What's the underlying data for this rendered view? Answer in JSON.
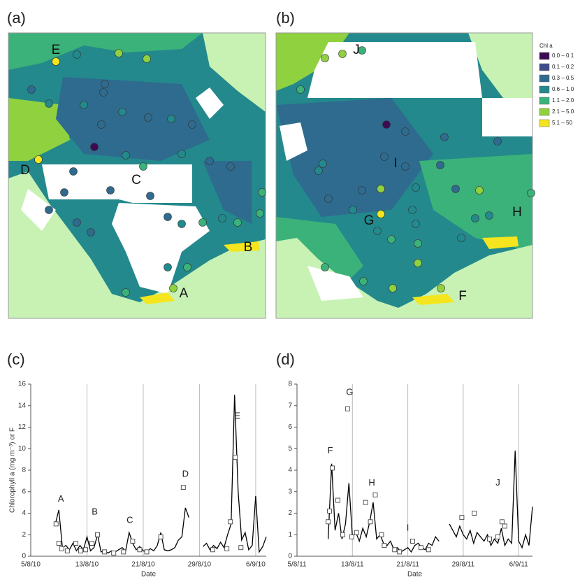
{
  "maps": {
    "panels": [
      {
        "label": "(a)",
        "points": [
          "E",
          "D",
          "C",
          "B",
          "A"
        ]
      },
      {
        "label": "(b)",
        "points": [
          "J",
          "I",
          "G",
          "H",
          "F"
        ]
      }
    ],
    "legend": {
      "title": "Chl a",
      "entries": [
        {
          "label": "0.0 – 0.1",
          "color": "#3d0a54"
        },
        {
          "label": "0.1 – 0.2",
          "color": "#3f4a8a"
        },
        {
          "label": "0.3 – 0.5",
          "color": "#2e6b8e"
        },
        {
          "label": "0.6 – 1.0",
          "color": "#23898c"
        },
        {
          "label": "1.1 – 2.0",
          "color": "#3bb27a"
        },
        {
          "label": "2.1 – 5.0",
          "color": "#8fd13f"
        },
        {
          "label": "5.1 – 50",
          "color": "#f5e51e"
        }
      ]
    }
  },
  "chart_data": [
    {
      "type": "line",
      "panel": "(c)",
      "y_label": "Chlorophyll a (mg m⁻³) or F",
      "x_label": "Date",
      "xlim": [
        0,
        33.5
      ],
      "ylim": [
        0,
        16
      ],
      "xticks": [
        {
          "value": 0,
          "label": "5/8/10"
        },
        {
          "value": 8,
          "label": "13/8/10"
        },
        {
          "value": 16,
          "label": "21/8/10"
        },
        {
          "value": 24,
          "label": "29/8/10"
        },
        {
          "value": 32,
          "label": "6/9/10"
        }
      ],
      "yticks": [
        0,
        2,
        4,
        6,
        8,
        10,
        12,
        14,
        16
      ],
      "grid": "x",
      "annotations": [
        "A",
        "B",
        "C",
        "D",
        "E"
      ],
      "series": [
        {
          "style": "line",
          "color": "#000000",
          "x": [
            3.5,
            4,
            4.5,
            5,
            5.5,
            6,
            6.5,
            7,
            7.5,
            8,
            8.5,
            9,
            9.5,
            10,
            10.5,
            11,
            11.5,
            12,
            12.5,
            13,
            13.5,
            14,
            14.5,
            15,
            15.5,
            16,
            16.5,
            17,
            17.5,
            18,
            18.5,
            19,
            19.5,
            20,
            20.5,
            21,
            21.5,
            22,
            22.5,
            23,
            23.5,
            24,
            24.5,
            25,
            25.5,
            26,
            26.5,
            27,
            27.5,
            28,
            28.5,
            29,
            29.5,
            30,
            30.5,
            31,
            31.5,
            32,
            32.5,
            33,
            33.5
          ],
          "values": [
            3.0,
            4.3,
            0.8,
            1.0,
            0.6,
            1.2,
            0.5,
            1.0,
            0.6,
            1.8,
            0.5,
            0.8,
            2.0,
            0.4,
            0.5,
            0.3,
            0.5,
            0.4,
            0.6,
            0.8,
            0.5,
            2.2,
            1.2,
            0.6,
            0.9,
            0.5,
            0.4,
            0.7,
            0.5,
            1.0,
            2.2,
            0.6,
            0.5,
            0.6,
            0.8,
            1.5,
            1.8,
            4.5,
            3.6,
            null,
            null,
            null,
            0.9,
            1.2,
            0.6,
            1.0,
            0.7,
            1.3,
            0.8,
            2.0,
            3.0,
            15.0,
            6.0,
            1.5,
            2.2,
            0.6,
            1.0,
            5.6,
            0.4,
            0.9,
            1.8
          ]
        },
        {
          "style": "square",
          "color": "#444444",
          "x": [
            3.6,
            4.0,
            4.4,
            5.2,
            6.4,
            7.1,
            7.8,
            8.7,
            9.5,
            10.5,
            11.8,
            13.2,
            14.5,
            15.5,
            16.5,
            18.5,
            21.7,
            25.9,
            27.9,
            28.4,
            29.1,
            29.9
          ],
          "values": [
            3.0,
            1.2,
            0.7,
            0.5,
            1.2,
            0.5,
            0.6,
            1.2,
            2.0,
            0.4,
            0.3,
            0.4,
            1.4,
            0.6,
            0.4,
            1.8,
            6.4,
            0.6,
            0.7,
            3.2,
            9.2,
            0.8
          ]
        }
      ]
    },
    {
      "type": "line",
      "panel": "(d)",
      "x_label": "Date",
      "xlim": [
        0,
        34
      ],
      "ylim": [
        0,
        8
      ],
      "xticks": [
        {
          "value": 0,
          "label": "5/8/11"
        },
        {
          "value": 8,
          "label": "13/8/11"
        },
        {
          "value": 16,
          "label": "21/8/11"
        },
        {
          "value": 24,
          "label": "29/8/11"
        },
        {
          "value": 32,
          "label": "6/9/11"
        }
      ],
      "yticks": [
        0,
        1,
        2,
        3,
        4,
        5,
        6,
        7,
        8
      ],
      "grid": "x",
      "annotations": [
        "F",
        "G",
        "H",
        "I",
        "J"
      ],
      "series": [
        {
          "style": "line",
          "color": "#000000",
          "x": [
            4.5,
            5,
            5.5,
            6,
            6.5,
            7,
            7.5,
            8,
            8.5,
            9,
            9.5,
            10,
            10.5,
            11,
            11.5,
            12,
            12.5,
            13,
            13.5,
            14,
            14.5,
            15,
            15.5,
            16,
            16.5,
            17,
            17.5,
            18,
            18.5,
            19,
            19.5,
            20,
            20.5,
            21,
            21.5,
            22,
            22.5,
            23,
            23.5,
            24,
            24.5,
            25,
            25.5,
            26,
            26.5,
            27,
            27.5,
            28,
            28.5,
            29,
            29.5,
            30,
            30.5,
            31,
            31.5,
            32,
            32.5,
            33,
            33.5,
            34
          ],
          "values": [
            0.8,
            4.3,
            1.2,
            2.0,
            0.8,
            1.5,
            3.4,
            0.9,
            1.1,
            0.7,
            1.3,
            0.9,
            1.6,
            2.5,
            0.8,
            1.0,
            0.6,
            0.5,
            0.7,
            0.3,
            0.4,
            0.2,
            0.3,
            0.4,
            0.2,
            0.5,
            0.6,
            0.4,
            0.3,
            0.6,
            0.5,
            0.9,
            0.7,
            null,
            null,
            1.5,
            1.2,
            0.9,
            1.4,
            1.0,
            0.8,
            1.2,
            0.6,
            1.1,
            0.9,
            0.7,
            1.0,
            0.5,
            0.8,
            0.6,
            1.3,
            0.5,
            0.8,
            0.6,
            4.9,
            0.7,
            0.4,
            1.0,
            0.5,
            2.3
          ]
        },
        {
          "style": "square",
          "color": "#444444",
          "x": [
            4.5,
            4.7,
            5.1,
            5.9,
            6.6,
            7.3,
            7.9,
            8.6,
            9.9,
            10.6,
            11.3,
            12.2,
            12.6,
            14.1,
            14.8,
            16.7,
            17.9,
            19.0,
            23.8,
            25.6,
            27.8,
            29.0,
            29.6,
            30.0
          ],
          "values": [
            1.6,
            2.1,
            4.1,
            2.6,
            1.0,
            6.85,
            0.9,
            1.1,
            2.5,
            1.6,
            2.85,
            1.0,
            0.5,
            0.3,
            0.2,
            0.7,
            0.4,
            0.3,
            1.8,
            2.0,
            0.8,
            0.9,
            1.6,
            1.4
          ]
        }
      ]
    }
  ]
}
